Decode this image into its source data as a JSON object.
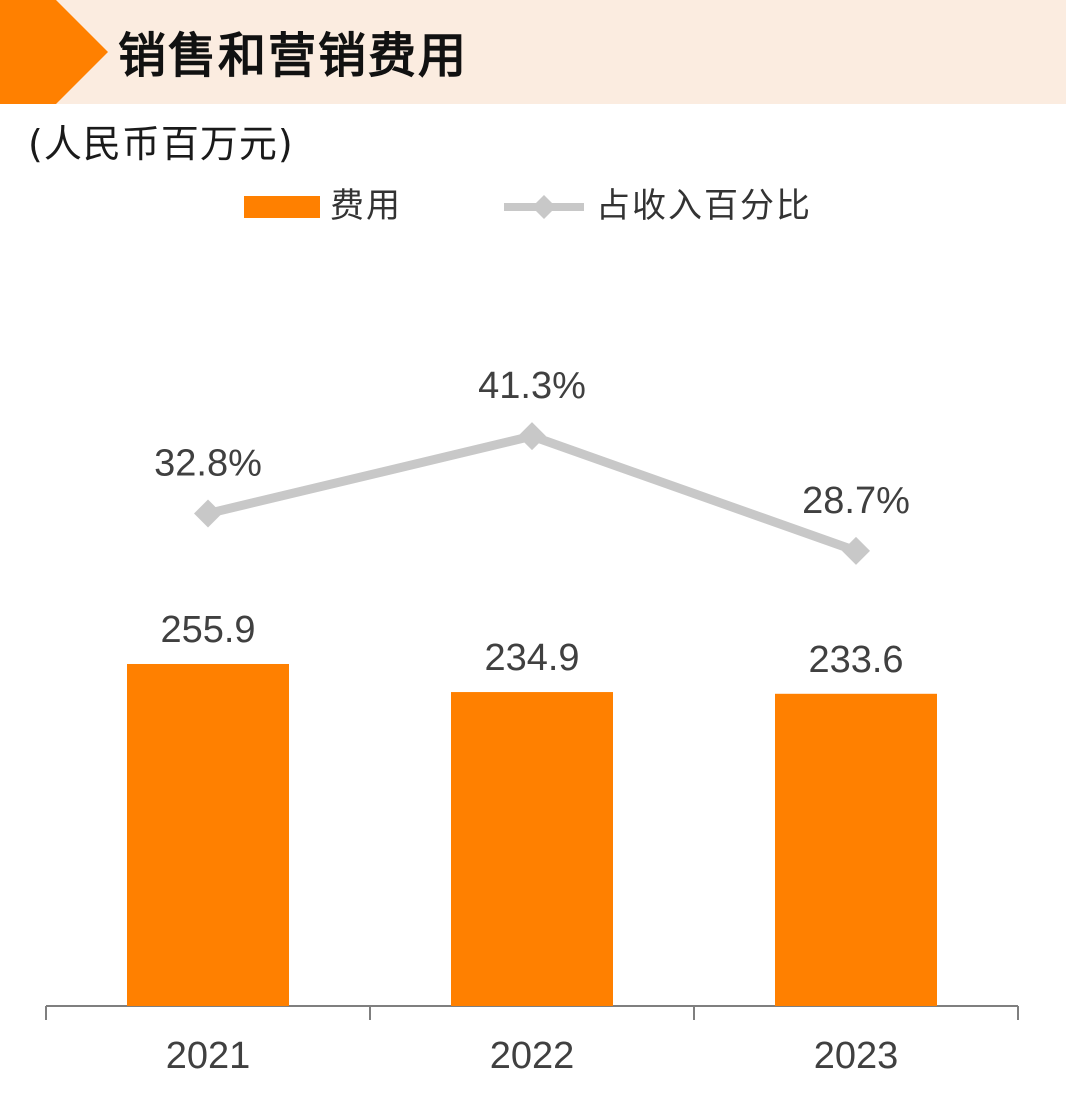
{
  "header": {
    "title": "销售和营销费用"
  },
  "unit_label": "(人民币百万元)",
  "colors": {
    "bar": "#ff8000",
    "line": "#c8c8c8",
    "header_band": "#fbece0",
    "header_arrow": "#ff8000",
    "text": "#404040"
  },
  "chart_data": {
    "type": "bar",
    "categories": [
      "2021",
      "2022",
      "2023"
    ],
    "series": [
      {
        "name": "费用",
        "type": "bar",
        "values": [
          255.9,
          234.9,
          233.6
        ],
        "labels": [
          "255.9",
          "234.9",
          "233.6"
        ]
      },
      {
        "name": "占收入百分比",
        "type": "line",
        "values": [
          32.8,
          41.3,
          28.7
        ],
        "labels": [
          "32.8%",
          "41.3%",
          "28.7%"
        ]
      }
    ],
    "title": "销售和营销费用",
    "ylabel": "(人民币百万元)",
    "legend": "top-center",
    "grid": false
  }
}
